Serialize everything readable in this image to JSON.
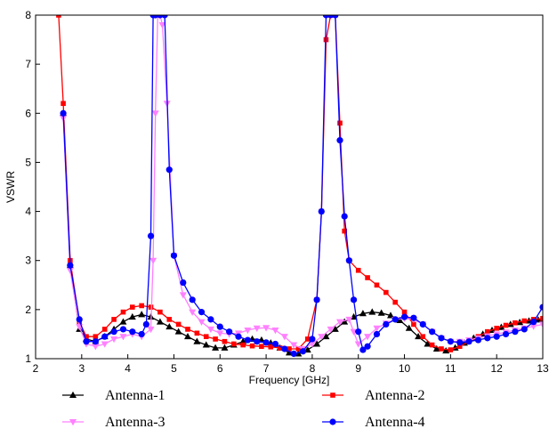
{
  "chart_data": {
    "type": "line",
    "xlabel": "Frequency [GHz]",
    "ylabel": "VSWR",
    "xlim": [
      2,
      13
    ],
    "ylim": [
      1,
      8
    ],
    "xticks": [
      2,
      3,
      4,
      5,
      6,
      7,
      8,
      9,
      10,
      11,
      12,
      13
    ],
    "yticks": [
      1,
      2,
      3,
      4,
      5,
      6,
      7,
      8
    ],
    "grid": false,
    "legend_position": "bottom",
    "series": [
      {
        "name": "Antenna-1",
        "color": "#000000",
        "marker": "triangle-up",
        "x": [
          2.6,
          2.75,
          2.95,
          3.1,
          3.3,
          3.5,
          3.7,
          3.9,
          4.1,
          4.3,
          4.5,
          4.7,
          4.9,
          5.1,
          5.3,
          5.5,
          5.7,
          5.9,
          6.1,
          6.3,
          6.5,
          6.7,
          6.9,
          7.1,
          7.3,
          7.5,
          7.7,
          7.9,
          8.1,
          8.3,
          8.5,
          8.7,
          8.9,
          9.1,
          9.3,
          9.5,
          9.7,
          9.9,
          10.1,
          10.3,
          10.5,
          10.7,
          10.9,
          11.1,
          11.3,
          11.5,
          11.7,
          11.9,
          12.1,
          12.3,
          12.5,
          12.7,
          12.9,
          13.0
        ],
        "y": [
          6.0,
          2.9,
          1.6,
          1.4,
          1.35,
          1.45,
          1.6,
          1.75,
          1.85,
          1.9,
          1.85,
          1.75,
          1.65,
          1.55,
          1.45,
          1.35,
          1.28,
          1.22,
          1.22,
          1.28,
          1.35,
          1.4,
          1.38,
          1.32,
          1.22,
          1.12,
          1.1,
          1.18,
          1.3,
          1.45,
          1.6,
          1.75,
          1.85,
          1.92,
          1.95,
          1.93,
          1.88,
          1.78,
          1.62,
          1.45,
          1.3,
          1.2,
          1.16,
          1.22,
          1.32,
          1.42,
          1.5,
          1.58,
          1.64,
          1.7,
          1.74,
          1.77,
          1.79,
          1.8
        ]
      },
      {
        "name": "Antenna-2",
        "color": "#ff0000",
        "marker": "square",
        "x": [
          2.5,
          2.6,
          2.75,
          2.95,
          3.1,
          3.3,
          3.5,
          3.7,
          3.9,
          4.1,
          4.3,
          4.5,
          4.7,
          4.9,
          5.1,
          5.3,
          5.5,
          5.7,
          5.9,
          6.1,
          6.3,
          6.5,
          6.7,
          6.9,
          7.1,
          7.3,
          7.5,
          7.7,
          7.9,
          8.1,
          8.2,
          8.3,
          8.4,
          8.5,
          8.6,
          8.7,
          8.8,
          9.0,
          9.2,
          9.4,
          9.6,
          9.8,
          10.0,
          10.2,
          10.4,
          10.6,
          10.8,
          11.0,
          11.2,
          11.4,
          11.6,
          11.8,
          12.0,
          12.2,
          12.4,
          12.6,
          12.8,
          13.0
        ],
        "y": [
          8.0,
          6.2,
          3.0,
          1.75,
          1.45,
          1.45,
          1.6,
          1.8,
          1.95,
          2.05,
          2.08,
          2.05,
          1.95,
          1.8,
          1.7,
          1.6,
          1.52,
          1.45,
          1.4,
          1.35,
          1.3,
          1.28,
          1.26,
          1.25,
          1.24,
          1.22,
          1.2,
          1.2,
          1.4,
          2.2,
          4.0,
          7.5,
          8.0,
          8.0,
          5.8,
          3.6,
          3.0,
          2.8,
          2.65,
          2.5,
          2.35,
          2.15,
          1.95,
          1.7,
          1.45,
          1.28,
          1.2,
          1.18,
          1.25,
          1.35,
          1.45,
          1.55,
          1.62,
          1.68,
          1.73,
          1.77,
          1.8,
          1.82
        ]
      },
      {
        "name": "Antenna-3",
        "color": "#ff80ff",
        "marker": "triangle-down",
        "x": [
          2.6,
          2.75,
          2.95,
          3.1,
          3.3,
          3.5,
          3.7,
          3.9,
          4.1,
          4.3,
          4.5,
          4.55,
          4.6,
          4.65,
          4.7,
          4.75,
          4.85,
          5.0,
          5.2,
          5.4,
          5.6,
          5.8,
          6.0,
          6.2,
          6.4,
          6.6,
          6.8,
          7.0,
          7.2,
          7.4,
          7.6,
          7.8,
          8.0,
          8.2,
          8.4,
          8.6,
          8.8,
          8.9,
          9.0,
          9.2,
          9.4,
          9.6,
          9.8,
          10.0,
          10.2,
          10.4,
          10.6,
          10.8,
          11.0,
          11.2,
          11.4,
          11.6,
          11.8,
          12.0,
          12.2,
          12.4,
          12.6,
          12.8,
          13.0
        ],
        "y": [
          5.9,
          2.8,
          1.65,
          1.3,
          1.25,
          1.3,
          1.4,
          1.45,
          1.5,
          1.45,
          1.6,
          3.0,
          6.0,
          8.0,
          8.0,
          7.8,
          6.2,
          3.1,
          2.3,
          1.95,
          1.75,
          1.6,
          1.52,
          1.5,
          1.52,
          1.58,
          1.62,
          1.63,
          1.58,
          1.45,
          1.28,
          1.2,
          1.3,
          1.45,
          1.6,
          1.75,
          1.8,
          1.55,
          1.3,
          1.45,
          1.62,
          1.72,
          1.8,
          1.82,
          1.8,
          1.7,
          1.55,
          1.42,
          1.35,
          1.35,
          1.38,
          1.42,
          1.46,
          1.5,
          1.54,
          1.58,
          1.62,
          1.66,
          1.7
        ]
      },
      {
        "name": "Antenna-4",
        "color": "#0000ff",
        "marker": "circle",
        "x": [
          2.6,
          2.75,
          2.95,
          3.1,
          3.3,
          3.5,
          3.7,
          3.9,
          4.1,
          4.3,
          4.4,
          4.5,
          4.55,
          4.6,
          4.7,
          4.8,
          4.9,
          5.0,
          5.2,
          5.4,
          5.6,
          5.8,
          6.0,
          6.2,
          6.4,
          6.6,
          6.8,
          7.0,
          7.2,
          7.4,
          7.6,
          7.8,
          8.0,
          8.1,
          8.2,
          8.3,
          8.4,
          8.5,
          8.6,
          8.7,
          8.8,
          8.9,
          9.0,
          9.1,
          9.2,
          9.4,
          9.6,
          9.8,
          10.0,
          10.2,
          10.4,
          10.6,
          10.8,
          11.0,
          11.2,
          11.4,
          11.6,
          11.8,
          12.0,
          12.2,
          12.4,
          12.6,
          12.8,
          13.0
        ],
        "y": [
          6.0,
          2.9,
          1.8,
          1.35,
          1.35,
          1.45,
          1.55,
          1.6,
          1.55,
          1.5,
          1.7,
          3.5,
          8.0,
          8.0,
          8.0,
          8.0,
          4.85,
          3.1,
          2.55,
          2.2,
          1.95,
          1.8,
          1.65,
          1.55,
          1.45,
          1.38,
          1.35,
          1.33,
          1.3,
          1.2,
          1.1,
          1.15,
          1.4,
          2.2,
          4.0,
          8.0,
          8.0,
          8.0,
          5.45,
          3.9,
          3.0,
          2.2,
          1.55,
          1.18,
          1.25,
          1.5,
          1.7,
          1.8,
          1.85,
          1.83,
          1.7,
          1.55,
          1.42,
          1.35,
          1.33,
          1.35,
          1.38,
          1.42,
          1.45,
          1.5,
          1.55,
          1.6,
          1.75,
          2.05
        ]
      }
    ]
  }
}
